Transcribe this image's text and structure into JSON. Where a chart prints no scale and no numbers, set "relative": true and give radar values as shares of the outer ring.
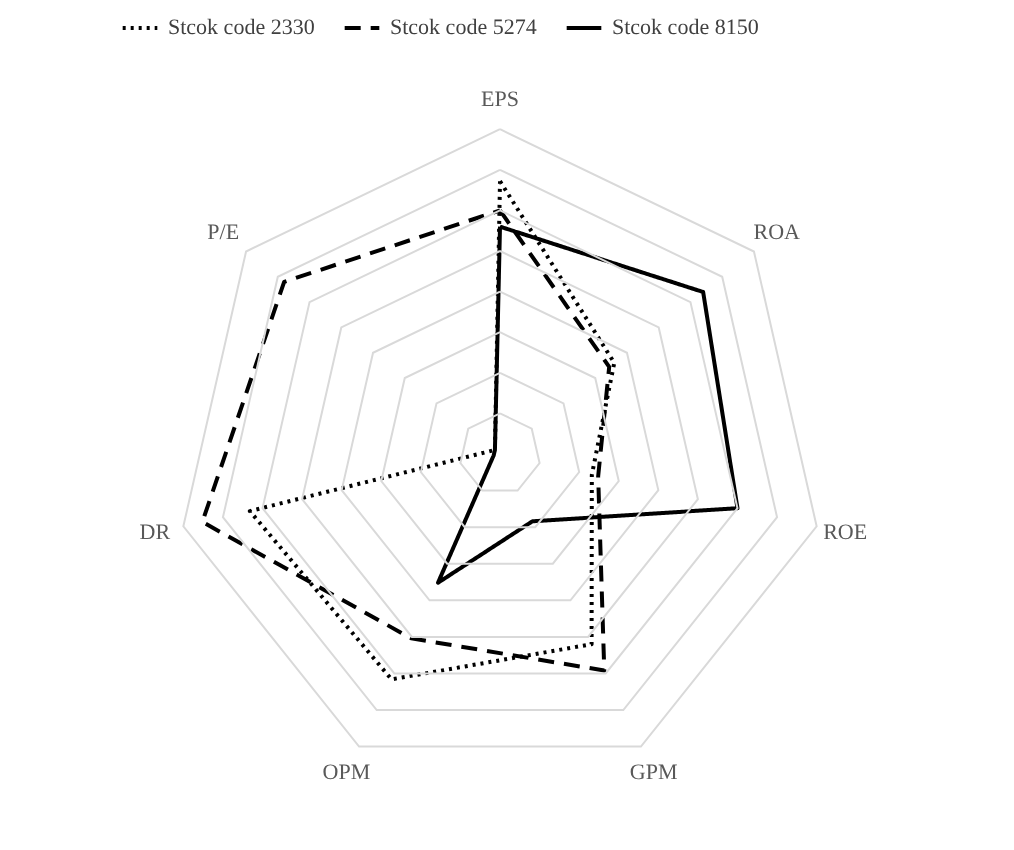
{
  "chart_data": {
    "type": "radar",
    "relative": true,
    "categories": [
      "EPS",
      "ROA",
      "ROE",
      "GPM",
      "OPM",
      "DR",
      "P/E"
    ],
    "series": [
      {
        "name": "Stcok code 2330",
        "color": "#000000",
        "line_style": "dotted",
        "values": [
          0.84,
          0.45,
          0.29,
          0.65,
          0.77,
          0.79,
          0.02
        ]
      },
      {
        "name": "Stcok code 5274",
        "color": "#000000",
        "line_style": "dashed",
        "values": [
          0.75,
          0.43,
          0.31,
          0.74,
          0.63,
          0.94,
          0.85
        ]
      },
      {
        "name": "Stcok code 8150",
        "color": "#000000",
        "line_style": "solid",
        "values": [
          0.7,
          0.8,
          0.75,
          0.23,
          0.44,
          0.02,
          0.02
        ]
      }
    ],
    "grid": true,
    "legend": "top",
    "marker": "none"
  }
}
